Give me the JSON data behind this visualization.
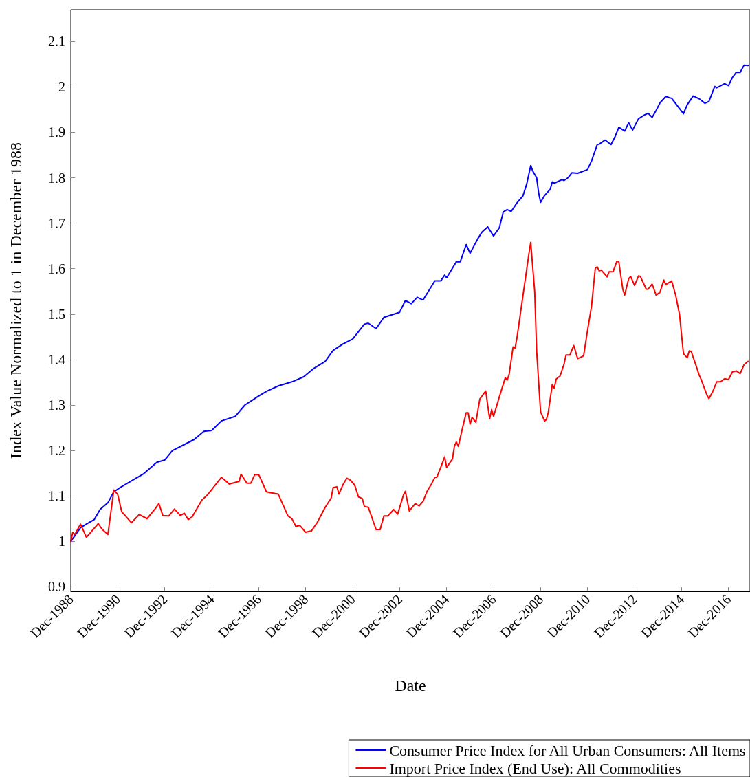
{
  "chart_data": {
    "type": "line",
    "xlabel": "Date",
    "ylabel": "Index Value Normalized to 1 in December 1988",
    "xlim": [
      "1988-12",
      "2017-11"
    ],
    "xticks": [
      {
        "value": "1988-12",
        "label": "Dec-1988"
      },
      {
        "value": "1990-12",
        "label": "Dec-1990"
      },
      {
        "value": "1992-12",
        "label": "Dec-1992"
      },
      {
        "value": "1994-12",
        "label": "Dec-1994"
      },
      {
        "value": "1996-12",
        "label": "Dec-1996"
      },
      {
        "value": "1998-12",
        "label": "Dec-1998"
      },
      {
        "value": "2000-12",
        "label": "Dec-2000"
      },
      {
        "value": "2002-12",
        "label": "Dec-2002"
      },
      {
        "value": "2004-12",
        "label": "Dec-2004"
      },
      {
        "value": "2006-12",
        "label": "Dec-2006"
      },
      {
        "value": "2008-12",
        "label": "Dec-2008"
      },
      {
        "value": "2010-12",
        "label": "Dec-2010"
      },
      {
        "value": "2012-12",
        "label": "Dec-2012"
      },
      {
        "value": "2014-12",
        "label": "Dec-2014"
      },
      {
        "value": "2016-12",
        "label": "Dec-2016"
      }
    ],
    "ylim": [
      0.89,
      2.17
    ],
    "yticks": [
      0.9,
      1,
      1.1,
      1.2,
      1.3,
      1.4,
      1.5,
      1.6,
      1.7,
      1.8,
      1.9,
      2,
      2.1
    ],
    "grid": false,
    "legend": "bottom right",
    "marker": "none",
    "line_style": "solid",
    "series": [
      {
        "name": "Consumer Price Index for All Urban Consumers: All Items",
        "color": "#0000ff",
        "x": [
          "1988-12",
          "1989-05",
          "1989-08",
          "1989-12",
          "1990-03",
          "1990-07",
          "1990-10",
          "1991-01",
          "1991-07",
          "1992-01",
          "1992-08",
          "1992-12",
          "1993-04",
          "1993-10",
          "1994-03",
          "1994-08",
          "1994-12",
          "1995-05",
          "1995-12",
          "1996-05",
          "1996-12",
          "1997-04",
          "1997-10",
          "1998-05",
          "1998-11",
          "1999-04",
          "1999-10",
          "2000-02",
          "2000-07",
          "2000-12",
          "2001-06",
          "2001-08",
          "2001-12",
          "2002-04",
          "2002-12",
          "2003-03",
          "2003-06",
          "2003-09",
          "2003-12",
          "2004-06",
          "2004-09",
          "2004-11",
          "2004-12",
          "2005-05",
          "2005-07",
          "2005-10",
          "2005-12",
          "2006-04",
          "2006-06",
          "2006-09",
          "2006-12",
          "2007-03",
          "2007-05",
          "2007-07",
          "2007-09",
          "2007-12",
          "2008-03",
          "2008-05",
          "2008-07",
          "2008-08",
          "2008-10",
          "2008-11",
          "2008-12",
          "2009-02",
          "2009-05",
          "2009-06",
          "2009-07",
          "2009-11",
          "2009-12",
          "2010-02",
          "2010-04",
          "2010-07",
          "2010-12",
          "2011-02",
          "2011-05",
          "2011-06",
          "2011-09",
          "2011-12",
          "2012-02",
          "2012-04",
          "2012-07",
          "2012-09",
          "2012-11",
          "2013-02",
          "2013-05",
          "2013-07",
          "2013-09",
          "2013-11",
          "2014-01",
          "2014-04",
          "2014-06",
          "2014-07",
          "2015-01",
          "2015-03",
          "2015-06",
          "2015-09",
          "2015-12",
          "2016-02",
          "2016-05",
          "2016-06",
          "2016-10",
          "2016-12",
          "2017-02",
          "2017-04",
          "2017-06",
          "2017-08",
          "2017-10"
        ],
        "values": [
          1.0,
          1.03,
          1.038,
          1.048,
          1.07,
          1.085,
          1.109,
          1.118,
          1.133,
          1.148,
          1.174,
          1.179,
          1.2,
          1.213,
          1.224,
          1.242,
          1.244,
          1.265,
          1.275,
          1.3,
          1.32,
          1.33,
          1.342,
          1.351,
          1.362,
          1.38,
          1.396,
          1.42,
          1.434,
          1.445,
          1.478,
          1.48,
          1.468,
          1.493,
          1.504,
          1.53,
          1.523,
          1.537,
          1.531,
          1.573,
          1.573,
          1.586,
          1.58,
          1.615,
          1.615,
          1.653,
          1.634,
          1.666,
          1.68,
          1.692,
          1.672,
          1.69,
          1.725,
          1.73,
          1.726,
          1.745,
          1.76,
          1.787,
          1.827,
          1.815,
          1.8,
          1.767,
          1.746,
          1.761,
          1.775,
          1.791,
          1.788,
          1.796,
          1.794,
          1.8,
          1.811,
          1.81,
          1.818,
          1.837,
          1.873,
          1.874,
          1.883,
          1.873,
          1.89,
          1.911,
          1.903,
          1.921,
          1.905,
          1.93,
          1.938,
          1.942,
          1.933,
          1.948,
          1.965,
          1.979,
          1.976,
          1.975,
          1.941,
          1.961,
          1.98,
          1.974,
          1.964,
          1.968,
          2.001,
          1.998,
          2.007,
          2.003,
          2.021,
          2.032,
          2.032,
          2.048,
          2.047
        ]
      },
      {
        "name": "Import Price Index (End Use): All Commodities",
        "color": "#ff0000",
        "x": [
          "1988-12",
          "1989-01",
          "1989-02",
          "1989-05",
          "1989-08",
          "1990-02",
          "1990-04",
          "1990-07",
          "1990-10",
          "1990-12",
          "1991-02",
          "1991-04",
          "1991-07",
          "1991-11",
          "1992-03",
          "1992-07",
          "1992-09",
          "1992-11",
          "1993-02",
          "1993-05",
          "1993-08",
          "1993-10",
          "1993-12",
          "1994-02",
          "1994-07",
          "1994-10",
          "1995-05",
          "1995-09",
          "1996-02",
          "1996-03",
          "1996-06",
          "1996-08",
          "1996-10",
          "1996-12",
          "1997-04",
          "1997-06",
          "1997-10",
          "1998-03",
          "1998-05",
          "1998-07",
          "1998-09",
          "1998-12",
          "1999-03",
          "1999-06",
          "1999-10",
          "2000-01",
          "2000-02",
          "2000-04",
          "2000-05",
          "2000-07",
          "2000-09",
          "2000-11",
          "2001-01",
          "2001-03",
          "2001-05",
          "2001-06",
          "2001-08",
          "2001-12",
          "2002-02",
          "2002-04",
          "2002-06",
          "2002-09",
          "2002-11",
          "2003-02",
          "2003-03",
          "2003-05",
          "2003-08",
          "2003-10",
          "2003-12",
          "2004-02",
          "2004-04",
          "2004-06",
          "2004-07",
          "2004-09",
          "2004-11",
          "2004-12",
          "2005-03",
          "2005-04",
          "2005-05",
          "2005-06",
          "2005-08",
          "2005-10",
          "2005-11",
          "2005-12",
          "2006-01",
          "2006-03",
          "2006-05",
          "2006-08",
          "2006-10",
          "2006-11",
          "2006-12",
          "2007-03",
          "2007-06",
          "2007-07",
          "2007-08",
          "2007-10",
          "2007-11",
          "2007-12",
          "2008-06",
          "2008-07",
          "2008-09",
          "2008-10",
          "2008-12",
          "2009-02",
          "2009-03",
          "2009-04",
          "2009-06",
          "2009-07",
          "2009-08",
          "2009-10",
          "2009-12",
          "2010-01",
          "2010-03",
          "2010-05",
          "2010-07",
          "2010-09",
          "2010-10",
          "2010-12",
          "2011-02",
          "2011-04",
          "2011-05",
          "2011-06",
          "2011-07",
          "2011-10",
          "2011-11",
          "2012-01",
          "2012-03",
          "2012-04",
          "2012-06",
          "2012-07",
          "2012-09",
          "2012-10",
          "2012-12",
          "2013-02",
          "2013-03",
          "2013-06",
          "2013-07",
          "2013-09",
          "2013-11",
          "2014-01",
          "2014-03",
          "2014-04",
          "2014-07",
          "2014-09",
          "2014-11",
          "2015-01",
          "2015-03",
          "2015-04",
          "2015-05",
          "2015-08",
          "2015-09",
          "2015-10",
          "2016-01",
          "2016-02",
          "2016-04",
          "2016-06",
          "2016-08",
          "2016-10",
          "2016-12",
          "2017-02",
          "2017-04",
          "2017-06",
          "2017-08",
          "2017-10"
        ],
        "values": [
          1.0,
          1.02,
          1.015,
          1.038,
          1.009,
          1.039,
          1.027,
          1.015,
          1.113,
          1.103,
          1.065,
          1.056,
          1.041,
          1.059,
          1.05,
          1.071,
          1.083,
          1.057,
          1.056,
          1.071,
          1.057,
          1.062,
          1.048,
          1.054,
          1.091,
          1.103,
          1.141,
          1.126,
          1.132,
          1.148,
          1.128,
          1.128,
          1.147,
          1.147,
          1.109,
          1.107,
          1.104,
          1.056,
          1.05,
          1.033,
          1.035,
          1.02,
          1.023,
          1.042,
          1.075,
          1.095,
          1.118,
          1.12,
          1.104,
          1.124,
          1.139,
          1.134,
          1.124,
          1.098,
          1.094,
          1.077,
          1.075,
          1.026,
          1.026,
          1.056,
          1.056,
          1.07,
          1.06,
          1.103,
          1.11,
          1.067,
          1.083,
          1.078,
          1.088,
          1.11,
          1.124,
          1.141,
          1.141,
          1.163,
          1.186,
          1.163,
          1.181,
          1.209,
          1.219,
          1.209,
          1.247,
          1.283,
          1.283,
          1.258,
          1.273,
          1.262,
          1.313,
          1.331,
          1.27,
          1.29,
          1.275,
          1.318,
          1.36,
          1.355,
          1.368,
          1.428,
          1.425,
          1.449,
          1.631,
          1.658,
          1.549,
          1.419,
          1.285,
          1.265,
          1.268,
          1.285,
          1.345,
          1.337,
          1.357,
          1.364,
          1.39,
          1.41,
          1.41,
          1.431,
          1.402,
          1.406,
          1.408,
          1.464,
          1.517,
          1.601,
          1.604,
          1.595,
          1.597,
          1.582,
          1.593,
          1.593,
          1.616,
          1.615,
          1.555,
          1.542,
          1.578,
          1.583,
          1.563,
          1.584,
          1.583,
          1.555,
          1.555,
          1.566,
          1.542,
          1.548,
          1.575,
          1.565,
          1.573,
          1.542,
          1.499,
          1.413,
          1.404,
          1.419,
          1.418,
          1.38,
          1.366,
          1.357,
          1.322,
          1.314,
          1.33,
          1.351,
          1.351,
          1.358,
          1.356,
          1.373,
          1.375,
          1.369,
          1.389,
          1.396
        ]
      }
    ]
  }
}
